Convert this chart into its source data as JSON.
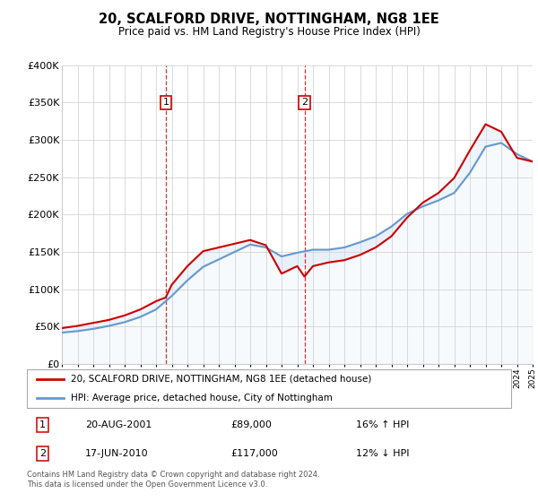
{
  "title": "20, SCALFORD DRIVE, NOTTINGHAM, NG8 1EE",
  "subtitle": "Price paid vs. HM Land Registry's House Price Index (HPI)",
  "footnote": "Contains HM Land Registry data © Crown copyright and database right 2024.\nThis data is licensed under the Open Government Licence v3.0.",
  "legend_line1": "20, SCALFORD DRIVE, NOTTINGHAM, NG8 1EE (detached house)",
  "legend_line2": "HPI: Average price, detached house, City of Nottingham",
  "annotation1_label": "1",
  "annotation1_date": "20-AUG-2001",
  "annotation1_price": "£89,000",
  "annotation1_hpi": "16% ↑ HPI",
  "annotation2_label": "2",
  "annotation2_date": "17-JUN-2010",
  "annotation2_price": "£117,000",
  "annotation2_hpi": "12% ↓ HPI",
  "red_color": "#cc0000",
  "blue_color": "#6699cc",
  "fill_color": "#cce0f5",
  "background_color": "#ffffff",
  "grid_color": "#cccccc",
  "ylim": [
    0,
    400000
  ],
  "yticks": [
    0,
    50000,
    100000,
    150000,
    200000,
    250000,
    300000,
    350000,
    400000
  ],
  "ytick_labels": [
    "£0",
    "£50K",
    "£100K",
    "£150K",
    "£200K",
    "£250K",
    "£300K",
    "£350K",
    "£400K"
  ],
  "sale1_year": 2001.62,
  "sale1_price": 89000,
  "sale2_year": 2010.46,
  "sale2_price": 117000,
  "hpi_years": [
    1995,
    1996,
    1997,
    1998,
    1999,
    2000,
    2001,
    2002,
    2003,
    2004,
    2005,
    2006,
    2007,
    2008,
    2009,
    2010,
    2011,
    2012,
    2013,
    2014,
    2015,
    2016,
    2017,
    2018,
    2019,
    2020,
    2021,
    2022,
    2023,
    2024,
    2025
  ],
  "hpi_values": [
    42000,
    44000,
    47000,
    51000,
    56000,
    63000,
    73000,
    91000,
    112000,
    130000,
    140000,
    150000,
    160000,
    156000,
    144000,
    149000,
    153000,
    153000,
    156000,
    163000,
    171000,
    184000,
    201000,
    211000,
    219000,
    229000,
    256000,
    291000,
    296000,
    281000,
    271000
  ],
  "red_years": [
    1995,
    1996,
    1997,
    1998,
    1999,
    2000,
    2001,
    2001.62,
    2002,
    2003,
    2004,
    2005,
    2006,
    2007,
    2008,
    2009,
    2010,
    2010.46,
    2011,
    2012,
    2013,
    2014,
    2015,
    2016,
    2017,
    2018,
    2019,
    2020,
    2021,
    2022,
    2023,
    2024,
    2025
  ],
  "red_values": [
    48000,
    51000,
    55000,
    59000,
    65000,
    73000,
    84000,
    89000,
    106000,
    131000,
    151000,
    156000,
    161000,
    166000,
    159000,
    121000,
    131000,
    117000,
    131000,
    136000,
    139000,
    146000,
    156000,
    171000,
    196000,
    216000,
    229000,
    249000,
    286000,
    321000,
    311000,
    276000,
    271000
  ],
  "xlim_left": 1995,
  "xlim_right": 2025
}
